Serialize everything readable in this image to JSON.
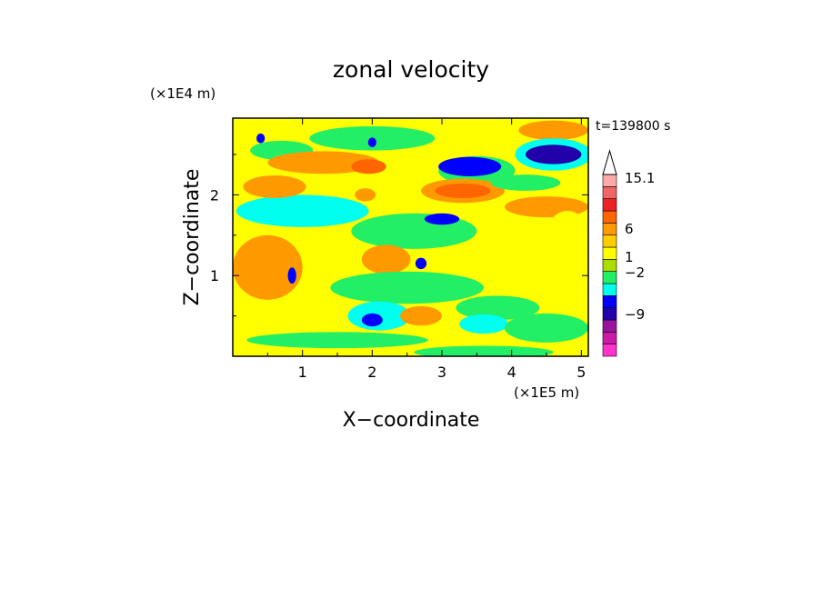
{
  "chart_data": {
    "type": "heatmap",
    "title": "zonal velocity",
    "xlabel": "X−coordinate",
    "ylabel": "Z−coordinate",
    "x_unit": "(×1E5 m)",
    "y_unit": "(×1E4 m)",
    "time_label": "t=139800 s",
    "xlim": [
      0,
      5.1
    ],
    "ylim": [
      0,
      2.95
    ],
    "x_ticks": [
      1,
      2,
      3,
      4,
      5
    ],
    "y_ticks": [
      1,
      2
    ],
    "x_tick_labels": [
      "1",
      "2",
      "3",
      "4",
      "5"
    ],
    "y_tick_labels": [
      "1",
      "2"
    ],
    "colorbar": {
      "colors": [
        "#ff33cc",
        "#cc1aa6",
        "#99149e",
        "#2200aa",
        "#0000ff",
        "#00ffee",
        "#22ee66",
        "#aadd00",
        "#ffff00",
        "#ffcc00",
        "#ff9900",
        "#ff6600",
        "#ee2222",
        "#ee6666",
        "#ffaaaa"
      ],
      "labels": [
        "15.1",
        "6",
        "1",
        "−2",
        "−9"
      ],
      "label_values": [
        15.1,
        6,
        1,
        -2,
        -9
      ]
    },
    "background_color": "#ffff00",
    "features": [
      {
        "x": 0.7,
        "z": 2.55,
        "rx": 0.45,
        "rz": 0.12,
        "color": "#22ee66"
      },
      {
        "x": 2.0,
        "z": 2.7,
        "rx": 0.9,
        "rz": 0.15,
        "color": "#22ee66"
      },
      {
        "x": 4.6,
        "z": 2.8,
        "rx": 0.5,
        "rz": 0.12,
        "color": "#ff9900"
      },
      {
        "x": 4.6,
        "z": 2.5,
        "rx": 0.55,
        "rz": 0.2,
        "color": "#00ffee"
      },
      {
        "x": 4.6,
        "z": 2.5,
        "rx": 0.4,
        "rz": 0.12,
        "color": "#2200aa"
      },
      {
        "x": 3.5,
        "z": 2.3,
        "rx": 0.55,
        "rz": 0.18,
        "color": "#22ee66"
      },
      {
        "x": 3.4,
        "z": 2.35,
        "rx": 0.45,
        "rz": 0.12,
        "color": "#0000ff"
      },
      {
        "x": 3.3,
        "z": 2.05,
        "rx": 0.6,
        "rz": 0.15,
        "color": "#ff9900"
      },
      {
        "x": 3.3,
        "z": 2.05,
        "rx": 0.4,
        "rz": 0.09,
        "color": "#ff6600"
      },
      {
        "x": 4.5,
        "z": 1.85,
        "rx": 0.6,
        "rz": 0.13,
        "color": "#ff9900"
      },
      {
        "x": 4.2,
        "z": 2.15,
        "rx": 0.5,
        "rz": 0.1,
        "color": "#22ee66"
      },
      {
        "x": 2.6,
        "z": 1.55,
        "rx": 0.9,
        "rz": 0.22,
        "color": "#22ee66"
      },
      {
        "x": 3.0,
        "z": 1.7,
        "rx": 0.25,
        "rz": 0.07,
        "color": "#0000ff"
      },
      {
        "x": 1.0,
        "z": 1.8,
        "rx": 0.95,
        "rz": 0.2,
        "color": "#00ffee"
      },
      {
        "x": 1.3,
        "z": 2.4,
        "rx": 0.8,
        "rz": 0.14,
        "color": "#ff9900"
      },
      {
        "x": 0.6,
        "z": 2.1,
        "rx": 0.45,
        "rz": 0.14,
        "color": "#ff9900"
      },
      {
        "x": 0.5,
        "z": 1.1,
        "rx": 0.5,
        "rz": 0.4,
        "color": "#ff9900"
      },
      {
        "x": 2.2,
        "z": 1.2,
        "rx": 0.35,
        "rz": 0.18,
        "color": "#ff9900"
      },
      {
        "x": 2.5,
        "z": 0.85,
        "rx": 1.1,
        "rz": 0.2,
        "color": "#22ee66"
      },
      {
        "x": 2.1,
        "z": 0.5,
        "rx": 0.45,
        "rz": 0.18,
        "color": "#00ffee"
      },
      {
        "x": 2.0,
        "z": 0.45,
        "rx": 0.15,
        "rz": 0.08,
        "color": "#0000ff"
      },
      {
        "x": 2.7,
        "z": 0.5,
        "rx": 0.3,
        "rz": 0.12,
        "color": "#ff9900"
      },
      {
        "x": 3.8,
        "z": 0.6,
        "rx": 0.6,
        "rz": 0.15,
        "color": "#22ee66"
      },
      {
        "x": 3.6,
        "z": 0.4,
        "rx": 0.35,
        "rz": 0.12,
        "color": "#00ffee"
      },
      {
        "x": 4.5,
        "z": 0.35,
        "rx": 0.6,
        "rz": 0.18,
        "color": "#22ee66"
      },
      {
        "x": 1.5,
        "z": 0.2,
        "rx": 1.3,
        "rz": 0.1,
        "color": "#22ee66"
      },
      {
        "x": 3.6,
        "z": 0.05,
        "rx": 1.0,
        "rz": 0.08,
        "color": "#22ee66"
      },
      {
        "x": 0.85,
        "z": 1.0,
        "rx": 0.06,
        "rz": 0.1,
        "color": "#0000ff"
      },
      {
        "x": 2.7,
        "z": 1.15,
        "rx": 0.08,
        "rz": 0.07,
        "color": "#0000ff"
      },
      {
        "x": 0.4,
        "z": 2.7,
        "rx": 0.06,
        "rz": 0.06,
        "color": "#0000ff"
      },
      {
        "x": 2.0,
        "z": 2.65,
        "rx": 0.06,
        "rz": 0.06,
        "color": "#0000ff"
      },
      {
        "x": 1.95,
        "z": 2.35,
        "rx": 0.25,
        "rz": 0.09,
        "color": "#ff6600"
      },
      {
        "x": 1.9,
        "z": 2.0,
        "rx": 0.15,
        "rz": 0.08,
        "color": "#ff9900"
      },
      {
        "x": 4.8,
        "z": 1.4,
        "rx": 0.35,
        "rz": 0.4,
        "color": "#ffff00"
      }
    ]
  }
}
